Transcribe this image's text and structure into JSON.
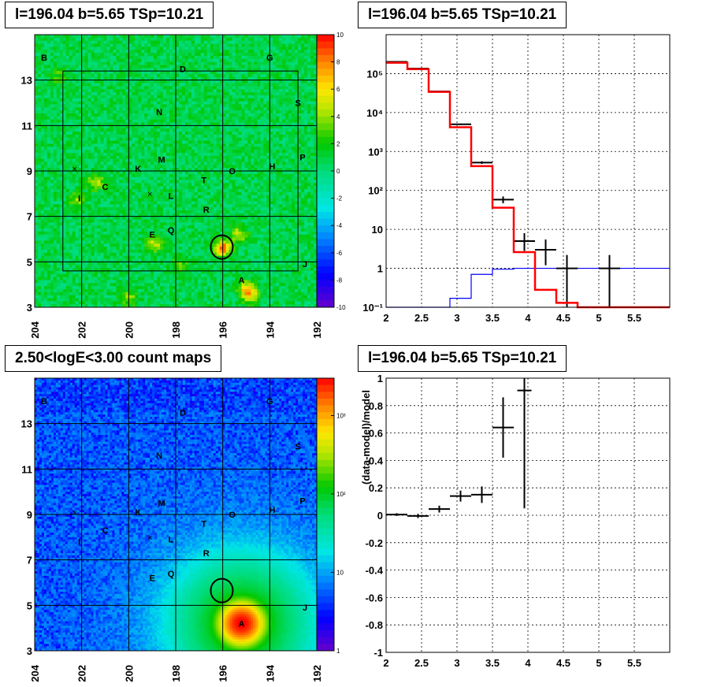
{
  "panels": {
    "tl_title": "l=196.04 b=5.65 TSp=10.21",
    "tr_title": "l=196.04 b=5.65 TSp=10.21",
    "bl_title": "2.50<logE<3.00 count maps",
    "br_title": "l=196.04 b=5.65 TSp=10.21"
  },
  "colors": {
    "data": "#000000",
    "model": "#ff0000",
    "background_model": "#0000ff"
  },
  "chart_data": [
    {
      "type": "heatmap",
      "name": "residual significance map",
      "xlabel": "",
      "ylabel": "",
      "xlim": [
        204,
        192
      ],
      "ylim": [
        3,
        15
      ],
      "x_ticks": [
        204,
        202,
        200,
        198,
        196,
        194,
        192
      ],
      "y_ticks": [
        3,
        5,
        7,
        9,
        11,
        13
      ],
      "colorbar": {
        "scale": "linear",
        "min": -10,
        "max": 10,
        "ticks": [
          10,
          8,
          6,
          4,
          2,
          0,
          -2,
          -4,
          -6,
          -8,
          -10
        ]
      },
      "sources": [
        {
          "label": "B",
          "l": 203.6,
          "b": 14.0
        },
        {
          "label": "D",
          "l": 197.7,
          "b": 13.5
        },
        {
          "label": "G",
          "l": 194.0,
          "b": 14.0
        },
        {
          "label": "N",
          "l": 198.7,
          "b": 11.6
        },
        {
          "label": "S",
          "l": 192.8,
          "b": 12.0
        },
        {
          "label": "M",
          "l": 198.6,
          "b": 9.5
        },
        {
          "label": "K",
          "l": 199.6,
          "b": 9.1
        },
        {
          "label": "P",
          "l": 192.6,
          "b": 9.6
        },
        {
          "label": "H",
          "l": 193.9,
          "b": 9.2
        },
        {
          "label": "O",
          "l": 195.6,
          "b": 9.0
        },
        {
          "label": "T",
          "l": 196.8,
          "b": 8.6
        },
        {
          "label": "C",
          "l": 201.0,
          "b": 8.3
        },
        {
          "label": "I",
          "l": 202.1,
          "b": 7.8
        },
        {
          "label": "L",
          "l": 198.2,
          "b": 7.9
        },
        {
          "label": "R",
          "l": 196.7,
          "b": 7.3
        },
        {
          "label": "E",
          "l": 199.0,
          "b": 6.2
        },
        {
          "label": "Q",
          "l": 198.2,
          "b": 6.4
        },
        {
          "label": "J",
          "l": 192.5,
          "b": 4.9
        },
        {
          "label": "A",
          "l": 195.2,
          "b": 4.2
        }
      ],
      "crosses": [
        {
          "l": 202.3,
          "b": 9.1
        },
        {
          "l": 199.1,
          "b": 8.0
        }
      ],
      "circle": {
        "l": 196.04,
        "b": 5.65
      },
      "hotspots": [
        {
          "l": 196.0,
          "b": 5.6,
          "value": 8
        },
        {
          "l": 201.4,
          "b": 8.5,
          "value": 4
        },
        {
          "l": 195.3,
          "b": 6.2,
          "value": 4
        },
        {
          "l": 198.9,
          "b": 5.8,
          "value": 4
        },
        {
          "l": 195.0,
          "b": 3.8,
          "value": 5
        },
        {
          "l": 194.8,
          "b": 3.5,
          "value": 4
        },
        {
          "l": 202.2,
          "b": 7.7,
          "value": 3
        },
        {
          "l": 197.8,
          "b": 4.8,
          "value": 3
        },
        {
          "l": 200.0,
          "b": 3.4,
          "value": 3
        },
        {
          "l": 203.0,
          "b": 13.2,
          "value": 2
        }
      ]
    },
    {
      "type": "line",
      "name": "counts spectrum",
      "xlim": [
        2,
        6
      ],
      "ylim": [
        0.1,
        1000000
      ],
      "yscale": "log",
      "x_ticks": [
        2,
        2.5,
        3,
        3.5,
        4,
        4.5,
        5,
        5.5
      ],
      "y_ticks": [
        {
          "value": 0.1,
          "label": "10⁻¹"
        },
        {
          "value": 1,
          "label": "1"
        },
        {
          "value": 10,
          "label": "10"
        },
        {
          "value": 100,
          "label": "10²"
        },
        {
          "value": 1000,
          "label": "10³"
        },
        {
          "value": 10000,
          "label": "10⁴"
        },
        {
          "value": 100000,
          "label": "10⁵"
        }
      ],
      "bin_edges": [
        2.0,
        2.3,
        2.6,
        2.9,
        3.2,
        3.5,
        3.8,
        4.1,
        4.4,
        4.7,
        5.0,
        5.3,
        5.6,
        6.0
      ],
      "model_values": [
        190000,
        130000,
        34000,
        4200,
        420,
        36,
        2.6,
        0.28,
        0.13,
        0.1,
        0.1,
        0.1,
        0.1
      ],
      "background_model_values": [
        0.1,
        0.1,
        0.1,
        0.17,
        0.7,
        0.95,
        1.0,
        1.0,
        1.0,
        1.0,
        1.0,
        1.0,
        1.0
      ],
      "data_points": [
        {
          "x": 2.15,
          "xerr": 0.15,
          "y": 200000,
          "ylo": 199000,
          "yhi": 201000
        },
        {
          "x": 2.45,
          "xerr": 0.15,
          "y": 135000,
          "ylo": 134000,
          "yhi": 136000
        },
        {
          "x": 2.75,
          "xerr": 0.15,
          "y": 35000,
          "ylo": 34500,
          "yhi": 35500
        },
        {
          "x": 3.05,
          "xerr": 0.15,
          "y": 5000,
          "ylo": 4800,
          "yhi": 5200
        },
        {
          "x": 3.35,
          "xerr": 0.15,
          "y": 520,
          "ylo": 480,
          "yhi": 560
        },
        {
          "x": 3.65,
          "xerr": 0.15,
          "y": 58,
          "ylo": 47,
          "yhi": 70
        },
        {
          "x": 3.95,
          "xerr": 0.15,
          "y": 5,
          "ylo": 2.8,
          "yhi": 8
        },
        {
          "x": 4.25,
          "xerr": 0.15,
          "y": 3,
          "ylo": 1.2,
          "yhi": 5.5
        },
        {
          "x": 4.55,
          "xerr": 0.15,
          "y": 1,
          "ylo": 0.1,
          "yhi": 2.2
        },
        {
          "x": 5.15,
          "xerr": 0.15,
          "y": 1,
          "ylo": 0.1,
          "yhi": 2.2
        }
      ]
    },
    {
      "type": "heatmap",
      "name": "count map",
      "title": "2.50<logE<3.00 count maps",
      "xlim": [
        204,
        192
      ],
      "ylim": [
        3,
        15
      ],
      "x_ticks": [
        204,
        202,
        200,
        198,
        196,
        194,
        192
      ],
      "y_ticks": [
        3,
        5,
        7,
        9,
        11,
        13
      ],
      "colorbar": {
        "scale": "log",
        "min": 1,
        "max": 3000,
        "ticks": [
          {
            "value": 1000,
            "label": "10³"
          },
          {
            "value": 100,
            "label": "10²"
          },
          {
            "value": 10,
            "label": "10"
          },
          {
            "value": 1,
            "label": "1"
          }
        ]
      },
      "peak": {
        "l": 195.2,
        "b": 4.2,
        "value": 3000
      },
      "background_level": 5
    },
    {
      "type": "scatter",
      "name": "residual ratio",
      "ylabel": "(data-model)/model",
      "xlim": [
        2,
        6
      ],
      "ylim": [
        -1,
        1
      ],
      "x_ticks": [
        2,
        2.5,
        3,
        3.5,
        4,
        4.5,
        5,
        5.5
      ],
      "y_ticks": [
        -1,
        -0.8,
        -0.6,
        -0.4,
        -0.2,
        0,
        0.2,
        0.4,
        0.6,
        0.8,
        1
      ],
      "data_points": [
        {
          "x": 2.15,
          "xerr": 0.15,
          "y": 0.005,
          "yerr": 0.01
        },
        {
          "x": 2.45,
          "xerr": 0.15,
          "y": -0.005,
          "yerr": 0.015
        },
        {
          "x": 2.75,
          "xerr": 0.15,
          "y": 0.045,
          "yerr": 0.025
        },
        {
          "x": 3.05,
          "xerr": 0.15,
          "y": 0.14,
          "yerr": 0.04
        },
        {
          "x": 3.35,
          "xerr": 0.15,
          "y": 0.15,
          "yerr": 0.06
        },
        {
          "x": 3.65,
          "xerr": 0.15,
          "y": 0.64,
          "yerr": 0.22
        },
        {
          "x": 3.95,
          "xerr": 0.1,
          "y": 0.91,
          "ylo": 0.05,
          "yhi": 1.0
        }
      ]
    }
  ]
}
